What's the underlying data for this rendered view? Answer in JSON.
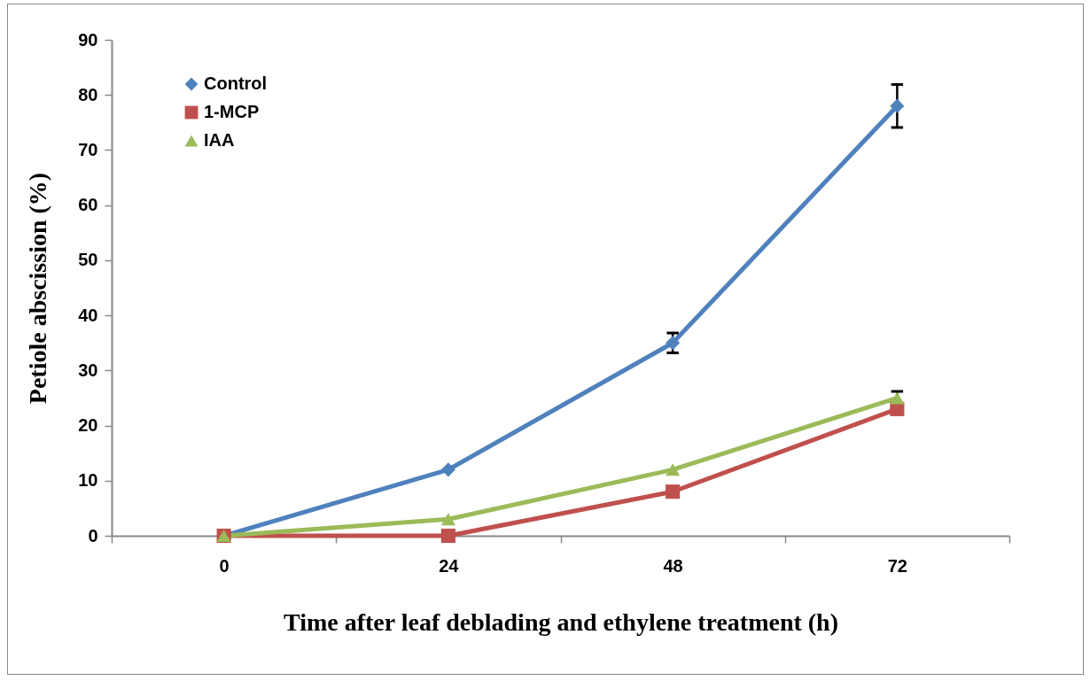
{
  "chart_data": {
    "type": "line",
    "xlabel": "Time after leaf deblading and ethylene treatment (h)",
    "ylabel": "Petiole abscission (%)",
    "categories": [
      "0",
      "24",
      "48",
      "72"
    ],
    "series": [
      {
        "name": "Control",
        "color": "#4f81bd",
        "marker": "diamond",
        "values": [
          0,
          12,
          35,
          78
        ],
        "errors": [
          null,
          null,
          1.8,
          3.9
        ]
      },
      {
        "name": "1-MCP",
        "color": "#c0504d",
        "marker": "square",
        "values": [
          0,
          0,
          8,
          23
        ],
        "errors": [
          null,
          null,
          null,
          null
        ]
      },
      {
        "name": "IAA",
        "color": "#9bbb59",
        "marker": "triangle",
        "values": [
          0,
          3,
          12,
          25
        ],
        "errors": [
          null,
          null,
          null,
          1.2
        ]
      }
    ],
    "ylim": [
      0,
      90
    ],
    "yticks": [
      0,
      10,
      20,
      30,
      40,
      50,
      60,
      70,
      80,
      90
    ],
    "grid": false,
    "legend": "top left",
    "line_style": "solid"
  }
}
